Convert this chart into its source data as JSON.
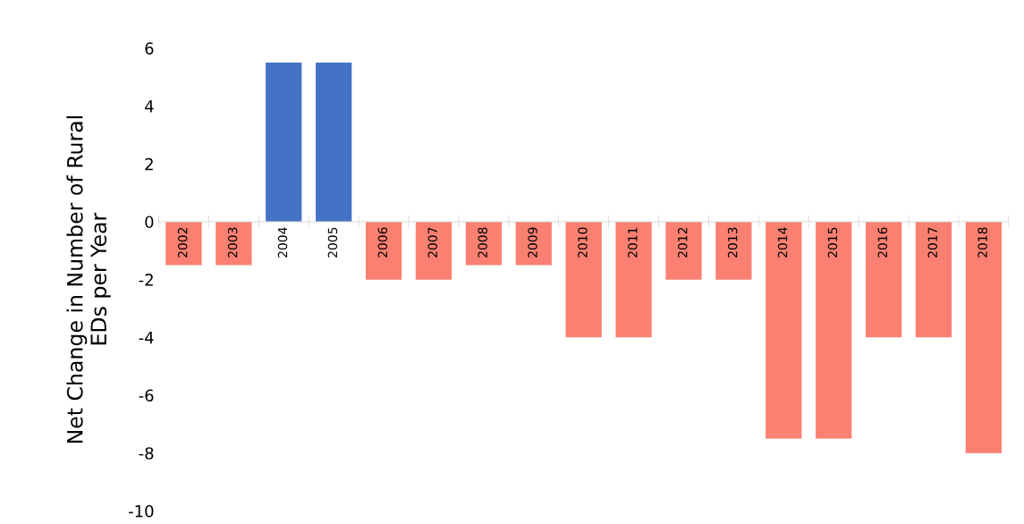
{
  "chart_data": {
    "type": "bar",
    "ylabel": "Net Change in Number of Rural\nEDs per Year",
    "categories": [
      "2002",
      "2003",
      "2004",
      "2005",
      "2006",
      "2007",
      "2008",
      "2009",
      "2010",
      "2011",
      "2012",
      "2013",
      "2014",
      "2015",
      "2016",
      "2017",
      "2018"
    ],
    "values": [
      -1.5,
      -1.5,
      5.5,
      5.5,
      -2,
      -2,
      -1.5,
      -1.5,
      -4,
      -4,
      -2,
      -2,
      -7.5,
      -7.5,
      -4,
      -4,
      -8
    ],
    "colors": [
      "#fa8072",
      "#fa8072",
      "#4472c4",
      "#4472c4",
      "#fa8072",
      "#fa8072",
      "#fa8072",
      "#fa8072",
      "#fa8072",
      "#fa8072",
      "#fa8072",
      "#fa8072",
      "#fa8072",
      "#fa8072",
      "#fa8072",
      "#fa8072",
      "#fa8072"
    ],
    "ylim": [
      -10,
      6
    ],
    "yticks": [
      -10,
      -8,
      -6,
      -4,
      -2,
      0,
      2,
      4,
      6
    ],
    "grid": false
  }
}
